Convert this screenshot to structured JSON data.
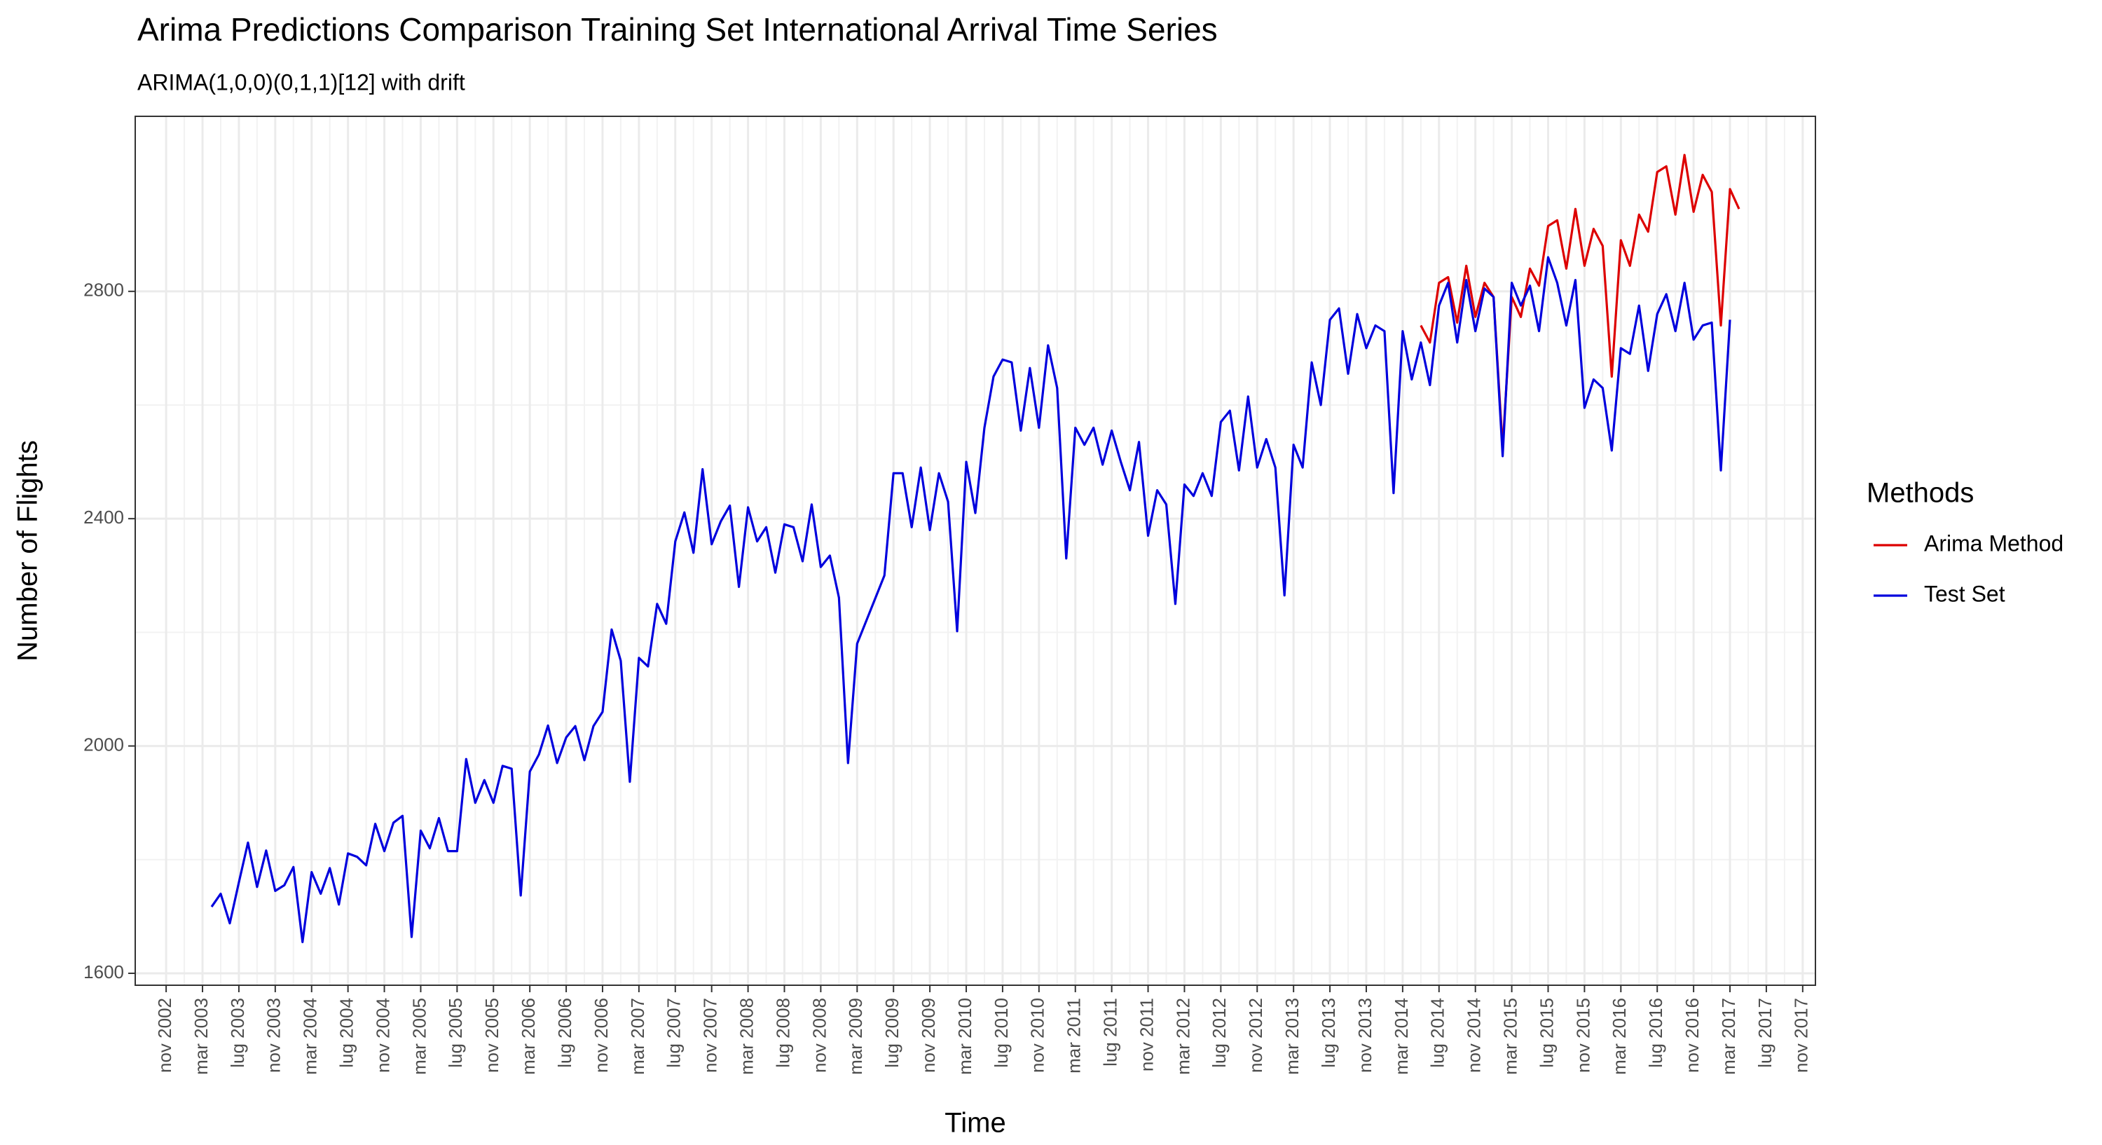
{
  "chart_data": {
    "type": "line",
    "title": "Arima Predictions Comparison Training Set International Arrival Time Series",
    "subtitle": "ARIMA(1,0,0)(0,1,1)[12] with drift",
    "x_label": "Time",
    "y_label": "Number of Flights",
    "legend_title": "Methods",
    "legend_position": "right",
    "grid": true,
    "minor_grid": true,
    "xlim": [
      2002.55,
      2017.95
    ],
    "ylim": [
      1579,
      3108
    ],
    "yticks": [
      1600,
      2000,
      2400,
      2800
    ],
    "xticks": [
      {
        "value": 2002.8333,
        "label": "nov 2002"
      },
      {
        "value": 2003.1667,
        "label": "mar 2003"
      },
      {
        "value": 2003.5,
        "label": "lug 2003"
      },
      {
        "value": 2003.8333,
        "label": "nov 2003"
      },
      {
        "value": 2004.1667,
        "label": "mar 2004"
      },
      {
        "value": 2004.5,
        "label": "lug 2004"
      },
      {
        "value": 2004.8333,
        "label": "nov 2004"
      },
      {
        "value": 2005.1667,
        "label": "mar 2005"
      },
      {
        "value": 2005.5,
        "label": "lug 2005"
      },
      {
        "value": 2005.8333,
        "label": "nov 2005"
      },
      {
        "value": 2006.1667,
        "label": "mar 2006"
      },
      {
        "value": 2006.5,
        "label": "lug 2006"
      },
      {
        "value": 2006.8333,
        "label": "nov 2006"
      },
      {
        "value": 2007.1667,
        "label": "mar 2007"
      },
      {
        "value": 2007.5,
        "label": "lug 2007"
      },
      {
        "value": 2007.8333,
        "label": "nov 2007"
      },
      {
        "value": 2008.1667,
        "label": "mar 2008"
      },
      {
        "value": 2008.5,
        "label": "lug 2008"
      },
      {
        "value": 2008.8333,
        "label": "nov 2008"
      },
      {
        "value": 2009.1667,
        "label": "mar 2009"
      },
      {
        "value": 2009.5,
        "label": "lug 2009"
      },
      {
        "value": 2009.8333,
        "label": "nov 2009"
      },
      {
        "value": 2010.1667,
        "label": "mar 2010"
      },
      {
        "value": 2010.5,
        "label": "lug 2010"
      },
      {
        "value": 2010.8333,
        "label": "nov 2010"
      },
      {
        "value": 2011.1667,
        "label": "mar 2011"
      },
      {
        "value": 2011.5,
        "label": "lug 2011"
      },
      {
        "value": 2011.8333,
        "label": "nov 2011"
      },
      {
        "value": 2012.1667,
        "label": "mar 2012"
      },
      {
        "value": 2012.5,
        "label": "lug 2012"
      },
      {
        "value": 2012.8333,
        "label": "nov 2012"
      },
      {
        "value": 2013.1667,
        "label": "mar 2013"
      },
      {
        "value": 2013.5,
        "label": "lug 2013"
      },
      {
        "value": 2013.8333,
        "label": "nov 2013"
      },
      {
        "value": 2014.1667,
        "label": "mar 2014"
      },
      {
        "value": 2014.5,
        "label": "lug 2014"
      },
      {
        "value": 2014.8333,
        "label": "nov 2014"
      },
      {
        "value": 2015.1667,
        "label": "mar 2015"
      },
      {
        "value": 2015.5,
        "label": "lug 2015"
      },
      {
        "value": 2015.8333,
        "label": "nov 2015"
      },
      {
        "value": 2016.1667,
        "label": "mar 2016"
      },
      {
        "value": 2016.5,
        "label": "lug 2016"
      },
      {
        "value": 2016.8333,
        "label": "nov 2016"
      },
      {
        "value": 2017.1667,
        "label": "mar 2017"
      },
      {
        "value": 2017.5,
        "label": "lug 2017"
      },
      {
        "value": 2017.8333,
        "label": "nov 2017"
      }
    ],
    "series": [
      {
        "name": "Arima Method",
        "color": "#dd0000",
        "x": [
          2014.3333,
          2014.4167,
          2014.5,
          2014.5833,
          2014.6667,
          2014.75,
          2014.8333,
          2014.9167,
          2015,
          2015.0833,
          2015.1667,
          2015.25,
          2015.3333,
          2015.4167,
          2015.5,
          2015.5833,
          2015.6667,
          2015.75,
          2015.8333,
          2015.9167,
          2016,
          2016.0833,
          2016.1667,
          2016.25,
          2016.3333,
          2016.4167,
          2016.5,
          2016.5833,
          2016.6667,
          2016.75,
          2016.8333,
          2016.9167,
          2017,
          2017.0833,
          2017.1667,
          2017.25
        ],
        "values": [
          2740,
          2710,
          2815,
          2825,
          2745,
          2845,
          2755,
          2815,
          2790,
          2525,
          2790,
          2755,
          2840,
          2810,
          2915,
          2925,
          2840,
          2945,
          2845,
          2910,
          2880,
          2650,
          2890,
          2845,
          2935,
          2905,
          3010,
          3020,
          2935,
          3040,
          2940,
          3005,
          2975,
          2740,
          2980,
          2945
        ]
      },
      {
        "name": "Test Set",
        "color": "#0000dd",
        "x": [
          2003.25,
          2003.3333,
          2003.4167,
          2003.5,
          2003.5833,
          2003.6667,
          2003.75,
          2003.8333,
          2003.9167,
          2004,
          2004.0833,
          2004.1667,
          2004.25,
          2004.3333,
          2004.4167,
          2004.5,
          2004.5833,
          2004.6667,
          2004.75,
          2004.8333,
          2004.9167,
          2005,
          2005.0833,
          2005.1667,
          2005.25,
          2005.3333,
          2005.4167,
          2005.5,
          2005.5833,
          2005.6667,
          2005.75,
          2005.8333,
          2005.9167,
          2006,
          2006.0833,
          2006.1667,
          2006.25,
          2006.3333,
          2006.4167,
          2006.5,
          2006.5833,
          2006.6667,
          2006.75,
          2006.8333,
          2006.9167,
          2007,
          2007.0833,
          2007.1667,
          2007.25,
          2007.3333,
          2007.4167,
          2007.5,
          2007.5833,
          2007.6667,
          2007.75,
          2007.8333,
          2007.9167,
          2008,
          2008.0833,
          2008.1667,
          2008.25,
          2008.3333,
          2008.4167,
          2008.5,
          2008.5833,
          2008.6667,
          2008.75,
          2008.8333,
          2008.9167,
          2009,
          2009.0833,
          2009.1667,
          2009.25,
          2009.3333,
          2009.4167,
          2009.5,
          2009.5833,
          2009.6667,
          2009.75,
          2009.8333,
          2009.9167,
          2010,
          2010.0833,
          2010.1667,
          2010.25,
          2010.3333,
          2010.4167,
          2010.5,
          2010.5833,
          2010.6667,
          2010.75,
          2010.8333,
          2010.9167,
          2011,
          2011.0833,
          2011.1667,
          2011.25,
          2011.3333,
          2011.4167,
          2011.5,
          2011.5833,
          2011.6667,
          2011.75,
          2011.8333,
          2011.9167,
          2012,
          2012.0833,
          2012.1667,
          2012.25,
          2012.3333,
          2012.4167,
          2012.5,
          2012.5833,
          2012.6667,
          2012.75,
          2012.8333,
          2012.9167,
          2013,
          2013.0833,
          2013.1667,
          2013.25,
          2013.3333,
          2013.4167,
          2013.5,
          2013.5833,
          2013.6667,
          2013.75,
          2013.8333,
          2013.9167,
          2014,
          2014.0833,
          2014.1667,
          2014.25,
          2014.3333,
          2014.4167,
          2014.5,
          2014.5833,
          2014.6667,
          2014.75,
          2014.8333,
          2014.9167,
          2015,
          2015.0833,
          2015.1667,
          2015.25,
          2015.3333,
          2015.4167,
          2015.5,
          2015.5833,
          2015.6667,
          2015.75,
          2015.8333,
          2015.9167,
          2016,
          2016.0833,
          2016.1667,
          2016.25,
          2016.3333,
          2016.4167,
          2016.5,
          2016.5833,
          2016.6667,
          2016.75,
          2016.8333,
          2016.9167,
          2017,
          2017.0833,
          2017.1667
        ],
        "values": [
          1717,
          1740,
          1688,
          1760,
          1830,
          1752,
          1816,
          1745,
          1755,
          1787,
          1655,
          1778,
          1740,
          1785,
          1721,
          1811,
          1805,
          1790,
          1863,
          1815,
          1865,
          1877,
          1664,
          1851,
          1820,
          1873,
          1815,
          1815,
          1977,
          1900,
          1940,
          1900,
          1965,
          1960,
          1737,
          1955,
          1985,
          2036,
          1970,
          2015,
          2035,
          1975,
          2035,
          2060,
          2205,
          2150,
          1937,
          2155,
          2140,
          2250,
          2215,
          2360,
          2411,
          2340,
          2487,
          2355,
          2395,
          2423,
          2280,
          2420,
          2360,
          2385,
          2305,
          2390,
          2385,
          2325,
          2425,
          2315,
          2335,
          2261,
          1970,
          2180,
          2220,
          2260,
          2300,
          2480,
          2480,
          2385,
          2490,
          2380,
          2480,
          2430,
          2202,
          2500,
          2410,
          2560,
          2650,
          2680,
          2675,
          2555,
          2665,
          2560,
          2705,
          2630,
          2330,
          2560,
          2530,
          2560,
          2495,
          2555,
          2500,
          2450,
          2535,
          2370,
          2450,
          2425,
          2250,
          2460,
          2440,
          2480,
          2440,
          2570,
          2590,
          2485,
          2615,
          2490,
          2540,
          2490,
          2265,
          2530,
          2490,
          2675,
          2600,
          2750,
          2770,
          2655,
          2760,
          2700,
          2740,
          2730,
          2445,
          2730,
          2645,
          2710,
          2635,
          2775,
          2815,
          2710,
          2820,
          2730,
          2805,
          2790,
          2510,
          2815,
          2775,
          2810,
          2730,
          2860,
          2815,
          2740,
          2820,
          2595,
          2645,
          2630,
          2520,
          2700,
          2690,
          2775,
          2660,
          2760,
          2795,
          2730,
          2815,
          2715,
          2740,
          2745,
          2485,
          2750
        ]
      }
    ]
  }
}
